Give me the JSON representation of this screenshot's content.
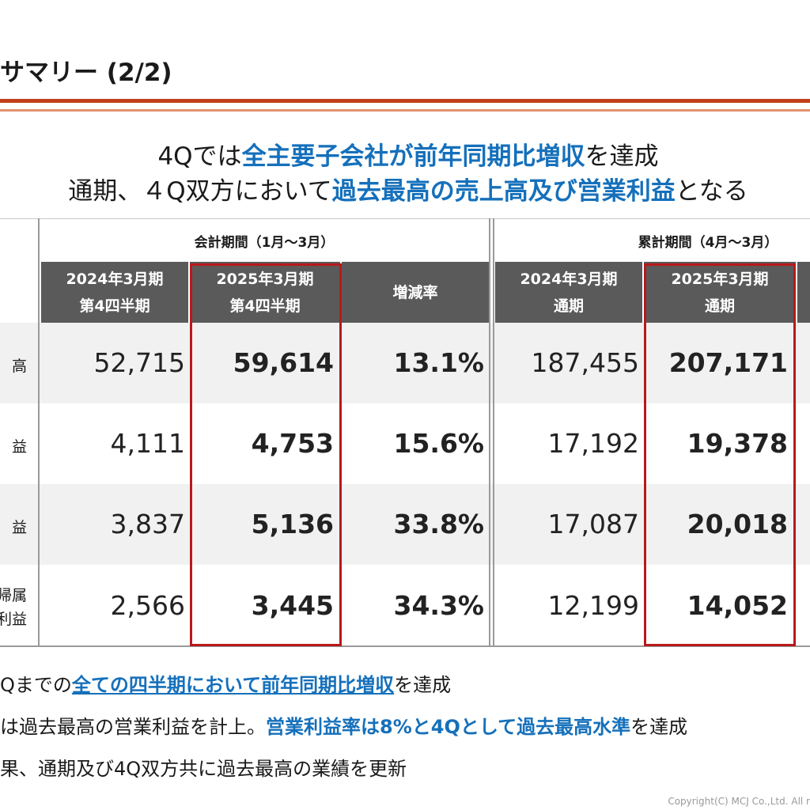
{
  "page": {
    "title": "サマリー (2/2)",
    "headline": {
      "line1": {
        "pre": "4Qでは",
        "hl": "全主要子会社が前年同期比増収",
        "post": "を達成"
      },
      "line2": {
        "pre": "通期、４Q双方において",
        "hl": "過去最高の売上高及び営業利益",
        "post": "となる"
      }
    },
    "table": {
      "group_quarter": "会計期間（1月～3月）",
      "group_cumulative": "累計期間（4月～3月）",
      "headers": {
        "q_prev": [
          "2024年3月期",
          "第4四半期"
        ],
        "q_curr": [
          "2025年3月期",
          "第4四半期"
        ],
        "q_rate": "増減率",
        "c_prev": [
          "2024年3月期",
          "通期"
        ],
        "c_curr": [
          "2025年3月期",
          "通期"
        ]
      },
      "rows": [
        {
          "label": [
            "高"
          ],
          "q_prev": "52,715",
          "q_curr": "59,614",
          "q_rate": "13.1%",
          "c_prev": "187,455",
          "c_curr": "207,171"
        },
        {
          "label": [
            "益"
          ],
          "q_prev": "4,111",
          "q_curr": "4,753",
          "q_rate": "15.6%",
          "c_prev": "17,192",
          "c_curr": "19,378"
        },
        {
          "label": [
            "益"
          ],
          "q_prev": "3,837",
          "q_curr": "5,136",
          "q_rate": "33.8%",
          "c_prev": "17,087",
          "c_curr": "20,018"
        },
        {
          "label": [
            "帰属",
            "利益"
          ],
          "q_prev": "2,566",
          "q_curr": "3,445",
          "q_rate": "34.3%",
          "c_prev": "12,199",
          "c_curr": "14,052"
        }
      ]
    },
    "bullets": [
      {
        "pre": "Qまでの",
        "hl": "全ての四半期において前年同期比増収",
        "post": "を達成"
      },
      {
        "pre": "は過去最高の営業利益を計上。",
        "hl": "営業利益率は8%と4Qとして過去最高水準",
        "post": "を達成"
      },
      {
        "pre": "果、通期及び4Q双方共に過去最高の業績を更新",
        "hl": "",
        "post": ""
      }
    ],
    "copyright": "Copyright(C) MCJ Co.,Ltd. All r"
  },
  "colors": {
    "accent_red": "#c0401a",
    "highlight_blue": "#1570bb",
    "header_gray": "#5a5a5a",
    "box_red": "#b8191c"
  }
}
